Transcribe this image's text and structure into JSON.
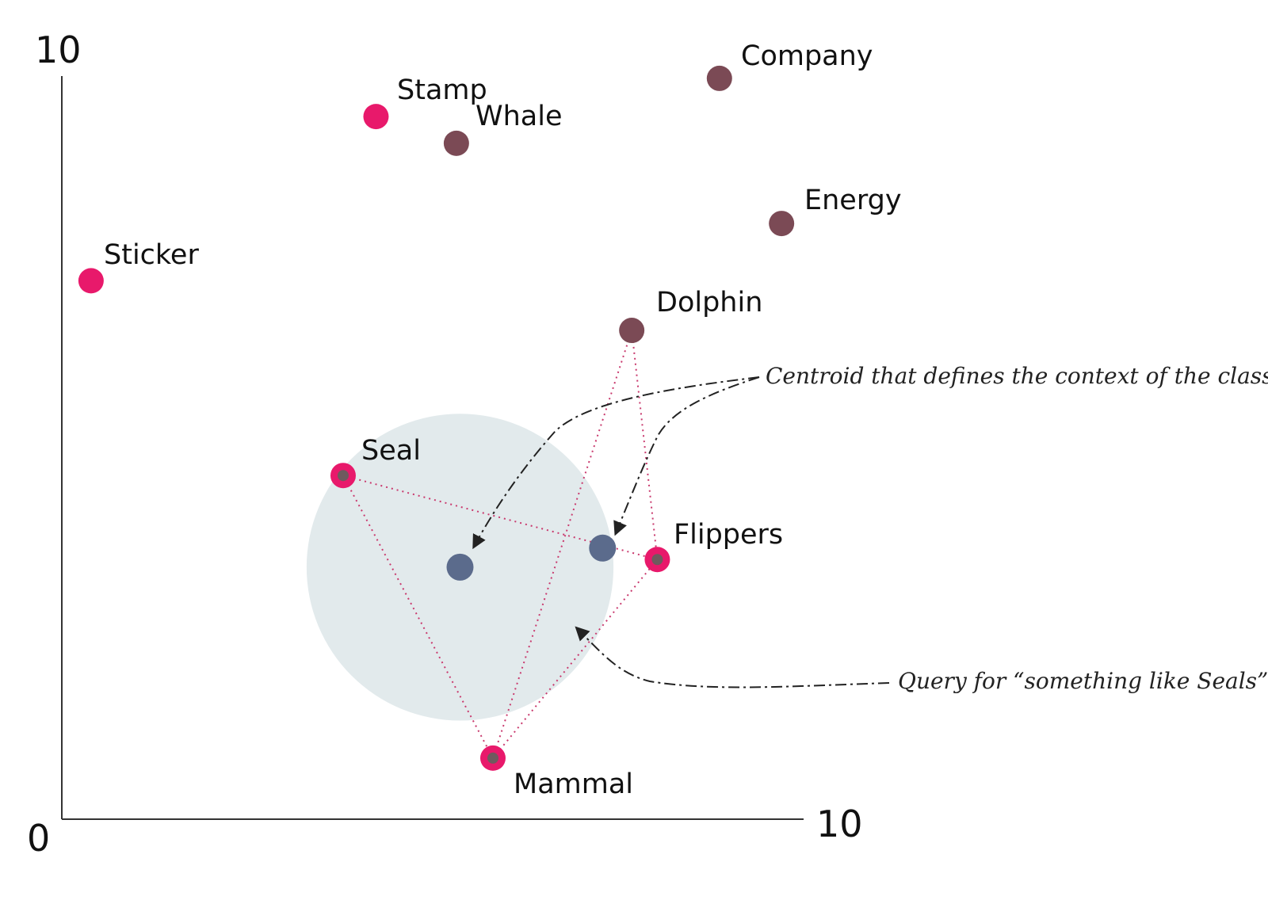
{
  "axes": {
    "origin_label": "0",
    "x_max_label": "10",
    "y_max_label": "10"
  },
  "colors": {
    "pink": "#e8196b",
    "maroon": "#7b4a55",
    "centroid_blue": "#5b6b8c",
    "query_circle": "#e2eaec",
    "inner_dot": "#6f5a5e"
  },
  "points": [
    {
      "id": "stamp",
      "label": "Stamp",
      "color": "pink",
      "x": 4.3,
      "y": 9.2
    },
    {
      "id": "whale",
      "label": "Whale",
      "color": "maroon",
      "x": 5.4,
      "y": 8.85
    },
    {
      "id": "company",
      "label": "Company",
      "color": "maroon",
      "x": 9.0,
      "y": 9.7
    },
    {
      "id": "energy",
      "label": "Energy",
      "color": "maroon",
      "x": 9.85,
      "y": 7.8
    },
    {
      "id": "sticker",
      "label": "Sticker",
      "color": "pink",
      "x": 0.4,
      "y": 7.05
    },
    {
      "id": "dolphin",
      "label": "Dolphin",
      "color": "maroon",
      "x": 7.8,
      "y": 6.4
    },
    {
      "id": "seal",
      "label": "Seal",
      "color": "pink",
      "x": 3.85,
      "y": 4.5,
      "inner": true
    },
    {
      "id": "flippers",
      "label": "Flippers",
      "color": "pink",
      "x": 8.15,
      "y": 3.4,
      "inner": true
    },
    {
      "id": "mammal",
      "label": "Mammal",
      "color": "pink",
      "x": 5.9,
      "y": 0.8,
      "inner": true
    }
  ],
  "centroids": [
    {
      "id": "query-centroid",
      "x": 5.45,
      "y": 3.3
    },
    {
      "id": "class-centroid",
      "x": 7.4,
      "y": 3.55
    }
  ],
  "query_region": {
    "x": 5.45,
    "y": 3.3,
    "radius": 2.1
  },
  "links": [
    [
      "seal",
      "flippers"
    ],
    [
      "seal",
      "mammal"
    ],
    [
      "mammal",
      "flippers"
    ],
    [
      "mammal",
      "dolphin"
    ],
    [
      "dolphin",
      "flippers"
    ]
  ],
  "annotations": {
    "centroid_note": "Centroid that defines the context of the class",
    "query_note": "Query for “something like Seals”"
  }
}
